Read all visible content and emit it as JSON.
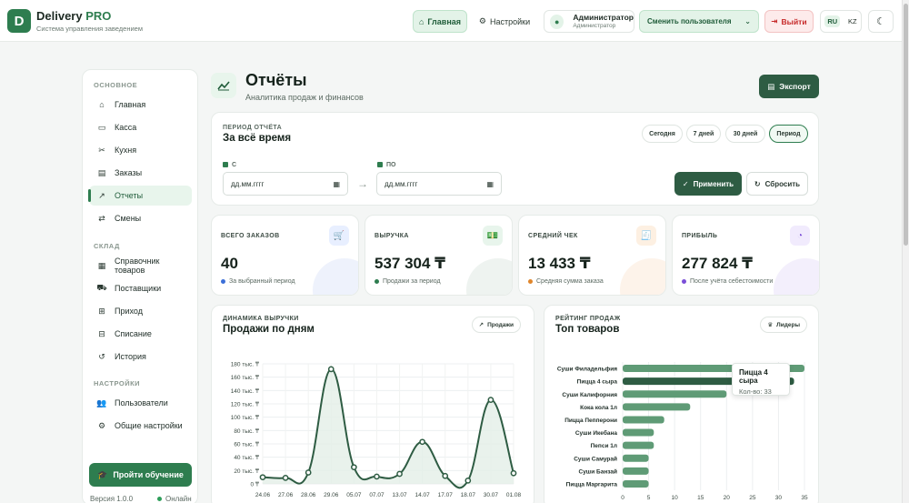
{
  "brand": {
    "logo_letter": "D",
    "name": "Delivery",
    "name_accent": "PRO",
    "subtitle": "Система управления заведением"
  },
  "topbar": {
    "home": "Главная",
    "settings": "Настройки",
    "user_name": "Администратор",
    "user_role": "Администратор",
    "switch_user": "Сменить пользователя",
    "logout": "Выйти",
    "lang_ru": "RU",
    "lang_kz": "KZ"
  },
  "sidebar": {
    "section_main": "ОСНОВНОЕ",
    "main_items": [
      {
        "label": "Главная",
        "icon": "home-icon"
      },
      {
        "label": "Касса",
        "icon": "cash-icon"
      },
      {
        "label": "Кухня",
        "icon": "kitchen-icon"
      },
      {
        "label": "Заказы",
        "icon": "orders-icon"
      },
      {
        "label": "Отчеты",
        "icon": "chart-icon",
        "active": true
      },
      {
        "label": "Смены",
        "icon": "shifts-icon"
      }
    ],
    "section_warehouse": "СКЛАД",
    "warehouse_items": [
      {
        "label": "Справочник товаров",
        "icon": "catalog-icon"
      },
      {
        "label": "Поставщики",
        "icon": "truck-icon"
      },
      {
        "label": "Приход",
        "icon": "incoming-icon"
      },
      {
        "label": "Списание",
        "icon": "writeoff-icon"
      },
      {
        "label": "История",
        "icon": "history-icon"
      }
    ],
    "section_settings": "НАСТРОЙКИ",
    "settings_items": [
      {
        "label": "Пользователи",
        "icon": "users-icon"
      },
      {
        "label": "Общие настройки",
        "icon": "gears-icon"
      }
    ],
    "training": "Пройти обучение",
    "version": "Версия 1.0.0",
    "status": "Онлайн"
  },
  "page": {
    "title": "Отчёты",
    "subtitle": "Аналитика продаж и финансов",
    "export": "Экспорт"
  },
  "period": {
    "label": "ПЕРИОД ОТЧЁТА",
    "value": "За всё время",
    "chips": [
      "Сегодня",
      "7 дней",
      "30 дней",
      "Период"
    ],
    "active_chip": "Период",
    "from_label": "С",
    "to_label": "ПО",
    "from_placeholder": "дд.мм.гггг",
    "to_placeholder": "дд.мм.гггг",
    "apply": "Применить",
    "reset": "Сбросить"
  },
  "stats": [
    {
      "label": "ВСЕГО ЗАКАЗОВ",
      "value": "40",
      "note": "За выбранный период",
      "icon": "cart-icon",
      "color": "#3b6fd8",
      "bg": "#e8efff",
      "blob": "#eef2fc"
    },
    {
      "label": "ВЫРУЧКА",
      "value": "537 304 ₸",
      "note": "Продажи за период",
      "icon": "money-icon",
      "color": "#2e7d4f",
      "bg": "#e8f5ec",
      "blob": "#eef3f0"
    },
    {
      "label": "СРЕДНИЙ ЧЕК",
      "value": "13 433 ₸",
      "note": "Средняя сумма заказа",
      "icon": "receipt-icon",
      "color": "#e0862b",
      "bg": "#fdf0e2",
      "blob": "#fdf3ea"
    },
    {
      "label": "ПРИБЫЛЬ",
      "value": "277 824 ₸",
      "note": "После учёта себестоимости",
      "icon": "pie-icon",
      "color": "#7b4fd8",
      "bg": "#f1ebfd",
      "blob": "#f3effc"
    }
  ],
  "sales_card": {
    "label": "ДИНАМИКА ВЫРУЧКИ",
    "title": "Продажи по дням",
    "chip": "Продажи"
  },
  "top_card": {
    "label": "РЕЙТИНГ ПРОДАЖ",
    "title": "Топ товаров",
    "chip": "Лидеры"
  },
  "tooltip": {
    "title": "Пицца 4 сыра",
    "value": "Кол-во: 33"
  },
  "chart_data": [
    {
      "type": "line",
      "title": "Продажи по дням",
      "x": [
        "24.06",
        "27.06",
        "28.06",
        "29.06",
        "05.07",
        "07.07",
        "13.07",
        "14.07",
        "17.07",
        "18.07",
        "30.07",
        "01.08"
      ],
      "series": [
        {
          "values": [
            10000,
            9000,
            17000,
            172000,
            25000,
            11000,
            15000,
            63000,
            12000,
            5000,
            126000,
            16000
          ]
        }
      ],
      "y_ticks": [
        "0 ₸",
        "20 тыс. ₸",
        "40 тыс. ₸",
        "60 тыс. ₸",
        "80 тыс. ₸",
        "100 тыс. ₸",
        "120 тыс. ₸",
        "140 тыс. ₸",
        "160 тыс. ₸",
        "180 тыс. ₸"
      ],
      "ylim": [
        0,
        180000
      ],
      "grid": true,
      "line_color": "#2e5c43",
      "fill_color": "#e3efe7"
    },
    {
      "type": "bar",
      "orientation": "horizontal",
      "title": "Топ товаров",
      "categories": [
        "Суши Филадельфия",
        "Пицца 4 сыра",
        "Суши Калифорния",
        "Кока кола 1л",
        "Пицца Пепперони",
        "Суши Икебана",
        "Пепси 1л",
        "Суши Самурай",
        "Суши Банзай",
        "Пицца Маргарита"
      ],
      "values": [
        35,
        33,
        20,
        13,
        8,
        6,
        6,
        5,
        5,
        5
      ],
      "x_ticks": [
        "0",
        "5",
        "10",
        "15",
        "20",
        "25",
        "30",
        "35"
      ],
      "xlim": [
        0,
        35
      ],
      "grid": true,
      "bar_color": "#5f9b76",
      "highlight_color": "#2e5c43",
      "highlighted": "Пицца 4 сыра"
    }
  ]
}
